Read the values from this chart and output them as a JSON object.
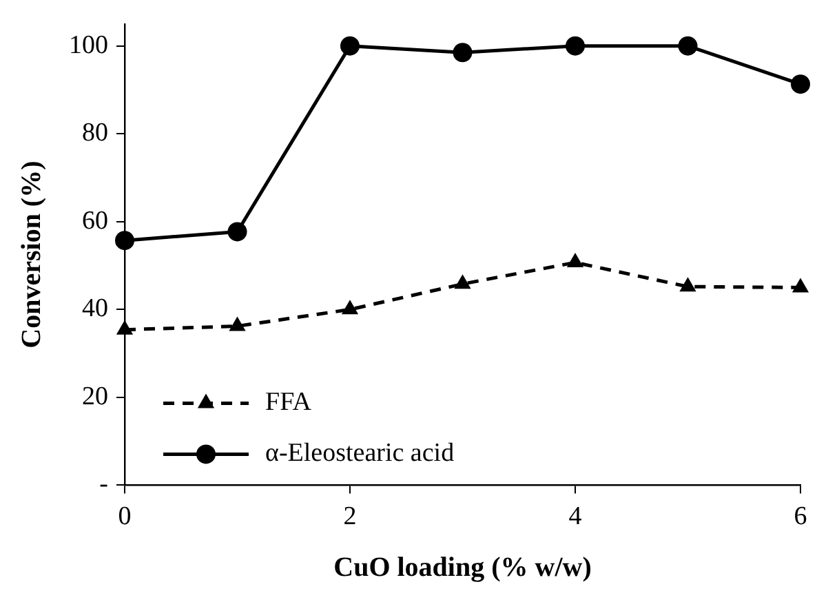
{
  "chart_data": {
    "type": "line",
    "xlabel": "CuO loading (% w/w)",
    "ylabel": "Conversion (%)",
    "x": [
      0,
      1,
      2,
      3,
      4,
      5,
      6
    ],
    "xlim": [
      0,
      6
    ],
    "xticks": [
      0,
      2,
      4,
      6
    ],
    "ylim": [
      0,
      105
    ],
    "yticks": [
      {
        "value": 0,
        "label": "-"
      },
      20,
      40,
      60,
      80,
      100
    ],
    "grid": false,
    "legend": "bottom left",
    "series": [
      {
        "name": "FFA",
        "color": "#000000",
        "marker": "triangle",
        "line_style": "dashed",
        "values": [
          35.4,
          36.2,
          40,
          45.8,
          50.7,
          45.2,
          45
        ]
      },
      {
        "name": "α-Eleostearic acid",
        "color": "#000000",
        "marker": "circle",
        "line_style": "solid",
        "values": [
          55.7,
          57.7,
          100,
          98.5,
          100,
          100,
          91.3
        ]
      }
    ]
  }
}
